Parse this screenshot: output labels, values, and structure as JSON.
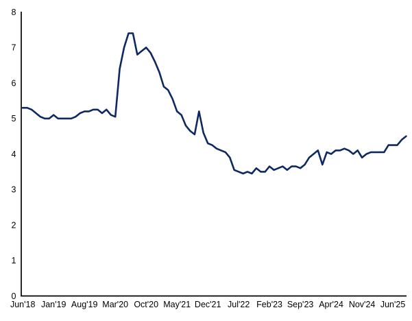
{
  "chart_data": {
    "type": "line",
    "title": "",
    "xlabel": "",
    "ylabel": "",
    "grid": false,
    "legend": "none",
    "ylim": [
      0,
      8
    ],
    "y_ticks": [
      0,
      1,
      2,
      3,
      4,
      5,
      6,
      7,
      8
    ],
    "x_tick_labels": [
      "Jun'18",
      "Jan'19",
      "Aug'19",
      "Mar'20",
      "Oct'20",
      "May'21",
      "Dec'21",
      "Jul'22",
      "Feb'23",
      "Sep'23",
      "Apr'24",
      "Nov'24",
      "Jun'25"
    ],
    "x_tick_indices": [
      0,
      7,
      14,
      21,
      28,
      35,
      42,
      49,
      56,
      63,
      70,
      77,
      84
    ],
    "line_color": "#0d2862",
    "axis_color": "#000000",
    "x": [
      "Jun'18",
      "Jul'18",
      "Aug'18",
      "Sep'18",
      "Oct'18",
      "Nov'18",
      "Dec'18",
      "Jan'19",
      "Feb'19",
      "Mar'19",
      "Apr'19",
      "May'19",
      "Jun'19",
      "Jul'19",
      "Aug'19",
      "Sep'19",
      "Oct'19",
      "Nov'19",
      "Dec'19",
      "Jan'20",
      "Feb'20",
      "Mar'20",
      "Apr'20",
      "May'20",
      "Jun'20",
      "Jul'20",
      "Aug'20",
      "Sep'20",
      "Oct'20",
      "Nov'20",
      "Dec'20",
      "Jan'21",
      "Feb'21",
      "Mar'21",
      "Apr'21",
      "May'21",
      "Jun'21",
      "Jul'21",
      "Aug'21",
      "Sep'21",
      "Oct'21",
      "Nov'21",
      "Dec'21",
      "Jan'22",
      "Feb'22",
      "Mar'22",
      "Apr'22",
      "May'22",
      "Jun'22",
      "Jul'22",
      "Aug'22",
      "Sep'22",
      "Oct'22",
      "Nov'22",
      "Dec'22",
      "Jan'23",
      "Feb'23",
      "Mar'23",
      "Apr'23",
      "May'23",
      "Jun'23",
      "Jul'23",
      "Aug'23",
      "Sep'23",
      "Oct'23",
      "Nov'23",
      "Dec'23",
      "Jan'24",
      "Feb'24",
      "Mar'24",
      "Apr'24",
      "May'24",
      "Jun'24",
      "Jul'24",
      "Aug'24",
      "Sep'24",
      "Oct'24",
      "Nov'24",
      "Dec'24",
      "Jan'25",
      "Feb'25",
      "Mar'25",
      "Apr'25",
      "May'25",
      "Jun'25",
      "Jul'25",
      "Aug'25",
      "Sep'25"
    ],
    "values": [
      5.3,
      5.3,
      5.25,
      5.15,
      5.05,
      5.0,
      5.0,
      5.1,
      5.0,
      5.0,
      5.0,
      5.0,
      5.05,
      5.15,
      5.2,
      5.2,
      5.25,
      5.25,
      5.15,
      5.25,
      5.1,
      5.05,
      6.4,
      7.0,
      7.4,
      7.4,
      6.8,
      6.9,
      7.0,
      6.85,
      6.6,
      6.3,
      5.9,
      5.8,
      5.55,
      5.2,
      5.1,
      4.8,
      4.65,
      4.55,
      5.2,
      4.6,
      4.3,
      4.25,
      4.15,
      4.1,
      4.05,
      3.9,
      3.55,
      3.5,
      3.45,
      3.5,
      3.45,
      3.6,
      3.5,
      3.5,
      3.65,
      3.55,
      3.6,
      3.65,
      3.55,
      3.65,
      3.65,
      3.6,
      3.7,
      3.9,
      4.0,
      4.1,
      3.7,
      4.05,
      4.0,
      4.1,
      4.1,
      4.15,
      4.1,
      4.0,
      4.1,
      3.9,
      4.0,
      4.05,
      4.05,
      4.05,
      4.05,
      4.25,
      4.25,
      4.25,
      4.4,
      4.5
    ]
  }
}
